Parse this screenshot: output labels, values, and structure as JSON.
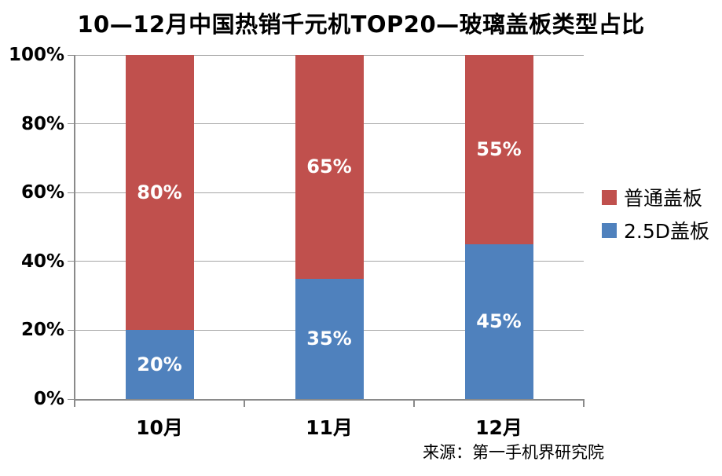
{
  "title": "10—12月中国热销千元机TOP20—玻璃盖板类型占比",
  "source_note": "来源：第一手机界研究院",
  "chart_data": {
    "type": "bar",
    "subtype": "stacked-column-100pct",
    "title": "10—12月中国热销千元机TOP20—玻璃盖板类型占比",
    "categories": [
      "10月",
      "11月",
      "12月"
    ],
    "series": [
      {
        "name": "普通盖板",
        "color": "#C0504D",
        "values": [
          80,
          65,
          55
        ],
        "labels": [
          "80%",
          "65%",
          "55%"
        ]
      },
      {
        "name": "2.5D盖板",
        "color": "#4F81BD",
        "values": [
          20,
          35,
          45
        ],
        "labels": [
          "20%",
          "35%",
          "45%"
        ]
      }
    ],
    "stack_order": "first-series-on-top",
    "xlabel": "",
    "ylabel": "",
    "ylim": [
      0,
      100
    ],
    "ytick_step": 20,
    "ytick_labels": [
      "0%",
      "20%",
      "40%",
      "60%",
      "80%",
      "100%"
    ],
    "grid": true,
    "legend_position": "right",
    "data_label_position": "center",
    "data_label_color": "#FFFFFF"
  },
  "colors": {
    "background": "#FFFFFF",
    "gridline": "#A6A6A6",
    "axis": "#8A8A8A",
    "text": "#000000",
    "series_red": "#C0504D",
    "series_blue": "#4F81BD"
  }
}
